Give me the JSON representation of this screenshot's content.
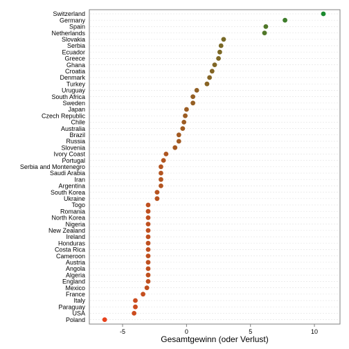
{
  "chart_data": {
    "type": "scatter",
    "xlabel": "Gesamtgewinn (oder Verlust)",
    "xlim": [
      -7.6,
      12.0
    ],
    "x_ticks": [
      -5,
      0,
      5,
      10
    ],
    "grid": true,
    "color_scale": {
      "low": "#e8421c",
      "high": "#1a8a2e",
      "min": -6.4,
      "max": 10.7
    },
    "points": [
      {
        "country": "Switzerland",
        "value": 10.7
      },
      {
        "country": "Germany",
        "value": 7.7
      },
      {
        "country": "Spain",
        "value": 6.2
      },
      {
        "country": "Netherlands",
        "value": 6.1
      },
      {
        "country": "Slovakia",
        "value": 2.9
      },
      {
        "country": "Serbia",
        "value": 2.7
      },
      {
        "country": "Ecuador",
        "value": 2.6
      },
      {
        "country": "Greece",
        "value": 2.5
      },
      {
        "country": "Ghana",
        "value": 2.2
      },
      {
        "country": "Croatia",
        "value": 2.0
      },
      {
        "country": "Denmark",
        "value": 1.8
      },
      {
        "country": "Turkey",
        "value": 1.6
      },
      {
        "country": "Uruguay",
        "value": 0.8
      },
      {
        "country": "South Africa",
        "value": 0.5
      },
      {
        "country": "Sweden",
        "value": 0.5
      },
      {
        "country": "Japan",
        "value": 0.0
      },
      {
        "country": "Czech Republic",
        "value": -0.1
      },
      {
        "country": "Chile",
        "value": -0.2
      },
      {
        "country": "Australia",
        "value": -0.3
      },
      {
        "country": "Brazil",
        "value": -0.6
      },
      {
        "country": "Russia",
        "value": -0.6
      },
      {
        "country": "Slovenia",
        "value": -0.9
      },
      {
        "country": "Ivory Coast",
        "value": -1.6
      },
      {
        "country": "Portugal",
        "value": -1.8
      },
      {
        "country": "Serbia and Montenegro",
        "value": -2.0
      },
      {
        "country": "Saudi Arabia",
        "value": -2.0
      },
      {
        "country": "Iran",
        "value": -2.0
      },
      {
        "country": "Argentina",
        "value": -2.0
      },
      {
        "country": "South Korea",
        "value": -2.3
      },
      {
        "country": "Ukraine",
        "value": -2.3
      },
      {
        "country": "Togo",
        "value": -3.0
      },
      {
        "country": "Romania",
        "value": -3.0
      },
      {
        "country": "North Korea",
        "value": -3.0
      },
      {
        "country": "Nigeria",
        "value": -3.0
      },
      {
        "country": "New Zealand",
        "value": -3.0
      },
      {
        "country": "Ireland",
        "value": -3.0
      },
      {
        "country": "Honduras",
        "value": -3.0
      },
      {
        "country": "Costa Rica",
        "value": -3.0
      },
      {
        "country": "Cameroon",
        "value": -3.0
      },
      {
        "country": "Austria",
        "value": -3.0
      },
      {
        "country": "Angola",
        "value": -3.0
      },
      {
        "country": "Algeria",
        "value": -3.0
      },
      {
        "country": "England",
        "value": -3.0
      },
      {
        "country": "Mexico",
        "value": -3.1
      },
      {
        "country": "France",
        "value": -3.4
      },
      {
        "country": "Italy",
        "value": -4.0
      },
      {
        "country": "Paraguay",
        "value": -4.0
      },
      {
        "country": "USA",
        "value": -4.1
      },
      {
        "country": "Poland",
        "value": -6.4
      }
    ]
  }
}
